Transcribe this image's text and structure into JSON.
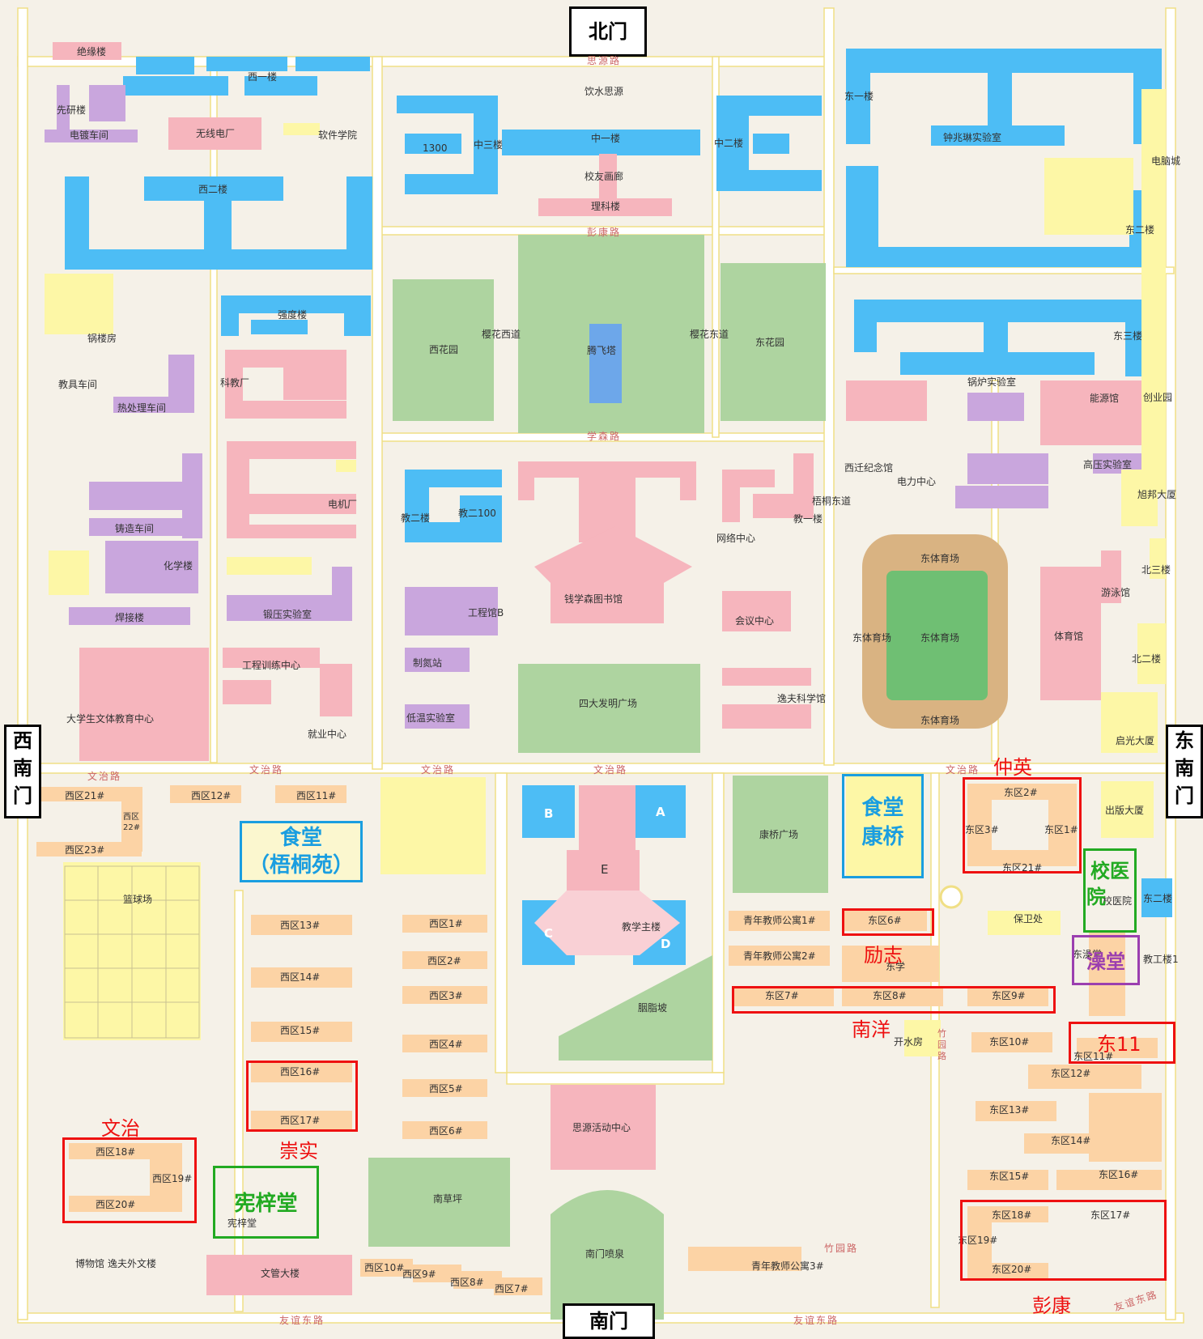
{
  "gates": {
    "north": "北门",
    "south": "南门",
    "west": "西南门",
    "east": "东南门"
  },
  "roads": {
    "siyuan": "思源路",
    "pengkang": "彭康路",
    "xuesen": "学森路",
    "wenzhi_w": "文治路",
    "wenzhi_w2": "文治路",
    "wenzhi_c": "文治路",
    "wenzhi_m": "文治路",
    "wenzhi_e": "文治路",
    "zhuyuan": "竹园路",
    "youyi_w": "友谊东路",
    "youyi_e": "友谊东路",
    "youyi_se": "友谊东路",
    "yinghua_w": "樱花西道",
    "yinghua_e": "樱花东道",
    "wutong_e": "梧桐东道",
    "zhuyuan_v": "竹园路"
  },
  "labels": {
    "juyuan": "绝缘楼",
    "xian": "先研楼",
    "dianduo": "电镀车间",
    "wuxian": "无线电厂",
    "xiyi": "西一楼",
    "ruanjian": "软件学院",
    "xier": "西二楼",
    "guolu": "锅楼房",
    "qiangdu": "强度楼",
    "jiaoju": "教具车间",
    "rechuli": "热处理车间",
    "kejiao": "科教厂",
    "dianji": "电机厂",
    "zhuzao": "铸造车间",
    "huaxue": "化学楼",
    "hanjie": "焊接楼",
    "duanya": "锻压实验室",
    "gongcheng": "工程训练中心",
    "jiuye": "就业中心",
    "daxuesheng": "大学生文体教育中心",
    "yinshui": "饮水思源",
    "zhongyi": "中一楼",
    "zhongsan": "中三楼",
    "zhonger": "中二楼",
    "n1300": "1300",
    "xiaoyou": "校友画廊",
    "like": "理科楼",
    "xihuayuan": "西花园",
    "tengfei": "腾飞塔",
    "donghuayuan": "东花园",
    "jiaoer": "教二楼",
    "jiaoer100": "教二100",
    "tushuguan": "钱学森图书馆",
    "gongchengb": "工程馆B",
    "zhidan": "制氮站",
    "diwen": "低温实验室",
    "sida": "四大发明广场",
    "wangluo": "网络中心",
    "jiaoyi": "教一楼",
    "huiyi": "会议中心",
    "yifu": "逸夫科学馆",
    "dongyi": "东一楼",
    "zhongzhaolin": "钟兆琳实验室",
    "diannao": "电脑城",
    "donger": "东二楼",
    "dongsan": "东三楼",
    "guolushi": "锅炉实验室",
    "nengyuan": "能源馆",
    "chuangye": "创业园",
    "xiqian": "西迁纪念馆",
    "dianli": "电力中心",
    "gaoya": "高压实验室",
    "xubang": "旭邦大厦",
    "beisan": "北三楼",
    "youyong": "游泳馆",
    "tiyu": "体育馆",
    "beier": "北二楼",
    "qiguang": "启光大厦",
    "dongti1": "东体育场",
    "dongti2": "东体育场",
    "dongti3": "东体育场",
    "dongti4": "东体育场",
    "x21": "西区21#",
    "x22": "西区22#",
    "x23": "西区23#",
    "x12": "西区12#",
    "x11": "西区11#",
    "lanqiu": "篮球场",
    "x13": "西区13#",
    "x14": "西区14#",
    "x15": "西区15#",
    "x16": "西区16#",
    "x17": "西区17#",
    "x18": "西区18#",
    "x19": "西区19#",
    "x20": "西区20#",
    "xianzi": "宪梓堂",
    "bowu": "博物馆",
    "yifuwai": "逸夫外文楼",
    "wenguan": "文管大楼",
    "x1": "西区1#",
    "x2": "西区2#",
    "x3": "西区3#",
    "x4": "西区4#",
    "x5": "西区5#",
    "x6": "西区6#",
    "x10": "西区10#",
    "x9": "西区9#",
    "x8": "西区8#",
    "x7": "西区7#",
    "A": "A",
    "B": "B",
    "C": "C",
    "D": "D",
    "E": "E",
    "zhulou": "教学主楼",
    "yanzhi": "胭脂坡",
    "siyuanhd": "思源活动中心",
    "nancaoping": "南草坪",
    "nanmenpq": "南门喷泉",
    "kangqiao": "康桥广场",
    "qn1": "青年教师公寓1#",
    "qn2": "青年教师公寓2#",
    "qn3": "青年教师公寓3#",
    "d6": "东区6#",
    "d7": "东区7#",
    "d8": "东区8#",
    "d9": "东区9#",
    "d2": "东区2#",
    "d3": "东区3#",
    "d1": "东区1#",
    "d21": "东区21#",
    "chuban": "出版大厦",
    "xiaoyiyuan": "校医院",
    "baowei": "保卫处",
    "dongxue": "东学",
    "jiaogong": "教工楼1",
    "kaishui": "开水房",
    "d10": "东区10#",
    "d11": "东区11#",
    "d12": "东区12#",
    "d13": "东区13#",
    "d14": "东区14#",
    "d15": "东区15#",
    "d16": "东区16#",
    "d17": "东区17#",
    "d18": "东区18#",
    "d19": "东区19#",
    "d20": "东区20#",
    "dongyuantang": "东澡堂"
  },
  "annotations": {
    "zhongying": "仲英",
    "lizhi": "励志",
    "nanyang": "南洋",
    "dong11": "东11",
    "wenzhi": "文治",
    "chongshi": "崇实",
    "pengkang": "彭康",
    "shitang_wt_1": "食堂",
    "shitang_wt_2": "（梧桐苑）",
    "shitang_kq_1": "食堂",
    "shitang_kq_2": "康桥",
    "xiaoyiyuan_1": "校医",
    "xiaoyiyuan_2": "院",
    "zaotang": "澡堂",
    "xianzitang": "宪梓堂"
  },
  "colors": {
    "dorm": "#fcd3a5",
    "teaching": "#4dbdf5",
    "lab": "#c9a6dd",
    "admin": "#f8b8c0",
    "green": "#a9d39a",
    "yellow": "#fdf7a6",
    "road": "#ffffff",
    "roadEdge": "#f2e187",
    "highlight_red": "#ee1111",
    "highlight_green": "#22aa22",
    "highlight_blue": "#1a9ee0",
    "highlight_purple": "#9b3fb0"
  }
}
